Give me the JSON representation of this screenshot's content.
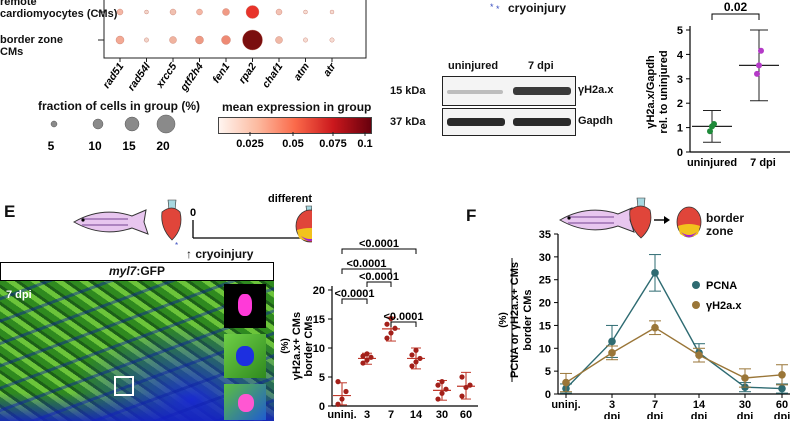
{
  "dotplot": {
    "rows": [
      "remote\ncardiomyocytes (CMs)",
      "border zone\nCMs"
    ],
    "row_top": "remote",
    "row_top2": "cardiomyocytes (CMs)",
    "row_bottom": "border zone",
    "row_bottom2": "CMs",
    "genes": [
      "rad51",
      "rad54l",
      "xrcc5",
      "gtf2h4",
      "fen1",
      "rpa2",
      "chaf1",
      "atm",
      "atr"
    ],
    "fraction_title": "fraction of cells in group (%)",
    "fraction_ticks": [
      "5",
      "10",
      "15",
      "20"
    ],
    "mean_title": "mean expression in group",
    "mean_ticks": [
      "0.025",
      "0.05",
      "0.075",
      "0.1"
    ]
  },
  "blot": {
    "cryo_label": "cryoinjury",
    "col1": "uninjured",
    "col2": "7 dpi",
    "kda1": "15 kDa",
    "kda2": "37 kDa",
    "band1": "γH2a.x",
    "band2": "Gapdh"
  },
  "quant": {
    "ylabel1": "γH2a.x/Gapdh",
    "ylabel2": "rel. to uninjured",
    "pvalue": "0.02",
    "xlabels": [
      "uninjured",
      "7 dpi"
    ],
    "yticks": [
      "0",
      "1",
      "2",
      "3",
      "4",
      "5"
    ],
    "uninjured_points": [
      0.85,
      1.05,
      1.15
    ],
    "dpi7_points": [
      3.2,
      3.55,
      4.15
    ],
    "uninjured_mean": 1.05,
    "uninjured_sd": [
      0.4,
      1.7
    ],
    "dpi7_mean": 3.55,
    "dpi7_sd": [
      2.1,
      5.0
    ]
  },
  "panelE": {
    "letter": "E",
    "timepoint_zero": "0",
    "different": "different time-points",
    "cryo": "cryoinjury",
    "micro_title_em": "myl7",
    "micro_title_rest": ":GFP",
    "micro_dpi": "7 dpi"
  },
  "chartE": {
    "ylabel1": "γH2a.x+ CMs",
    "ylabel2": "border CMs",
    "ylabel_unit": "(%)",
    "yticks": [
      "0",
      "5",
      "10",
      "15",
      "20"
    ],
    "xlabels": [
      "uninj.",
      "3",
      "7",
      "14",
      "30",
      "60"
    ],
    "pvals": [
      "<0.0001",
      "<0.0001",
      "<0.0001",
      "<0.0001",
      "<0.0001"
    ]
  },
  "panelF": {
    "letter": "F",
    "border": "border",
    "zone": "zone",
    "ylabel1": "PCNA or γH2a.x+ CMs",
    "ylabel2": "border CMs",
    "ylabel_unit": "(%)",
    "yticks": [
      "0",
      "5",
      "10",
      "15",
      "20",
      "25",
      "30",
      "35"
    ],
    "xlabels": [
      "uninj.",
      "3",
      "7",
      "14",
      "30",
      "60"
    ],
    "xsub": "dpi",
    "legend_pcna": "PCNA",
    "legend_h2ax": "γH2a.x"
  },
  "chart_data": [
    {
      "type": "scatter",
      "ylabel": "γH2a.x+ CMs border CMs (%)",
      "categories": [
        "uninj.",
        "3",
        "7",
        "14",
        "30",
        "60"
      ],
      "ylim": [
        0,
        20
      ],
      "means": [
        1.8,
        8.2,
        13.3,
        8.2,
        2.7,
        3.4
      ],
      "sd_low": [
        0.2,
        7.2,
        11.2,
        6.4,
        1.0,
        1.2
      ],
      "sd_high": [
        4.0,
        9.1,
        15.3,
        10.0,
        4.4,
        5.8
      ],
      "points": [
        [
          0.3,
          1.2,
          2.5,
          4.2
        ],
        [
          7.4,
          7.9,
          8.4,
          8.6,
          9.0
        ],
        [
          11.7,
          12.6,
          13.4,
          14.1,
          15.1
        ],
        [
          6.9,
          7.6,
          8.2,
          8.8,
          9.6
        ],
        [
          1.2,
          2.2,
          2.9,
          3.6,
          4.2
        ],
        [
          1.7,
          3.2,
          3.6,
          5.0
        ]
      ]
    },
    {
      "type": "line",
      "ylabel": "PCNA or γH2a.x+ CMs border CMs (%)",
      "categories": [
        "uninj.",
        "3 dpi",
        "7 dpi",
        "14 dpi",
        "30 dpi",
        "60 dpi"
      ],
      "ylim": [
        0,
        35
      ],
      "series": [
        {
          "name": "PCNA",
          "values": [
            1.2,
            11.5,
            26.5,
            9.0,
            1.5,
            1.2
          ],
          "err": [
            1.0,
            3.5,
            4.0,
            2.0,
            1.0,
            1.0
          ],
          "color": "#2e6b72"
        },
        {
          "name": "γH2a.x",
          "values": [
            2.5,
            9.0,
            14.5,
            8.5,
            3.5,
            4.2
          ],
          "err": [
            2.0,
            1.5,
            1.5,
            1.5,
            2.0,
            2.2
          ],
          "color": "#9a7638"
        }
      ]
    }
  ]
}
